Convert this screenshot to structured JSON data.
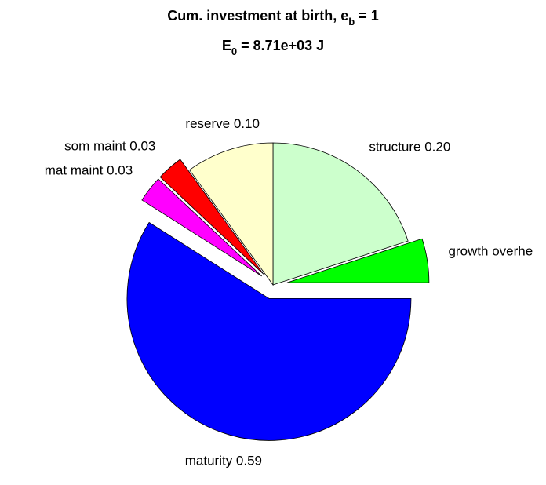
{
  "chart_data": {
    "type": "pie",
    "title": {
      "text": "Cum. investment at birth, e",
      "sub": "b",
      "tail": " = 1"
    },
    "subtitle": {
      "text": "E",
      "sub": "0",
      "tail": " = 8.71e+03 J"
    },
    "labels": [
      "structure 0.20",
      "growth overhe",
      "maturity 0.59",
      "mat maint 0.03",
      "som maint 0.03",
      "reserve 0.10"
    ],
    "values": [
      0.2,
      0.05,
      0.59,
      0.03,
      0.03,
      0.1
    ],
    "colors": [
      "#ccffcc",
      "#00ff00",
      "#0000ff",
      "#ff00ff",
      "#ff0000",
      "#ffffcc"
    ],
    "explode": [
      false,
      true,
      true,
      true,
      true,
      false
    ]
  }
}
